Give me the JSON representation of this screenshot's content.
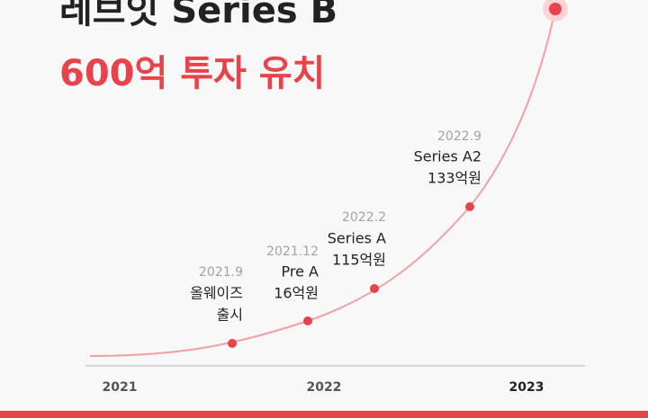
{
  "header": {
    "title": "레브잇 Series B",
    "subtitle": "600억 투자 유치"
  },
  "milestones": [
    {
      "date": "2021.9",
      "lines": [
        "올웨이즈",
        "출시"
      ]
    },
    {
      "date": "2021.12",
      "lines": [
        "Pre A",
        "16억원"
      ]
    },
    {
      "date": "2022.2",
      "lines": [
        "Series A",
        "115억원"
      ]
    },
    {
      "date": "2022.9",
      "lines": [
        "Series A2",
        "133억원"
      ]
    }
  ],
  "axis": [
    "2021",
    "2022",
    "2023"
  ]
}
